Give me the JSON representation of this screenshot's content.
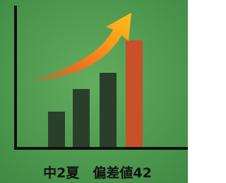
{
  "caption": "中2夏　偏差値42"
}
